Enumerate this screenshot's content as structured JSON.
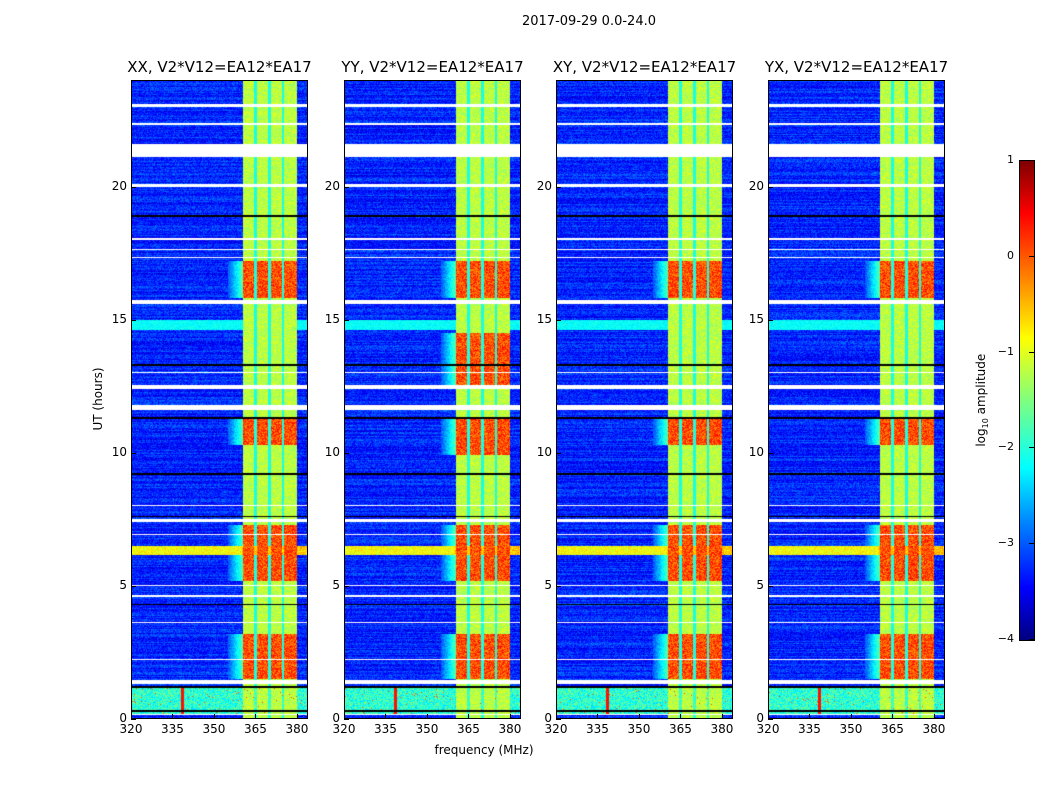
{
  "chart_data": {
    "type": "heatmap",
    "title": "2017-09-29 0.0-24.0",
    "xlabel": "frequency (MHz)",
    "ylabel": "UT (hours)",
    "xlim": [
      320,
      384
    ],
    "ylim": [
      0,
      24
    ],
    "xticks": [
      "320",
      "335",
      "350",
      "365",
      "380"
    ],
    "xtick_values": [
      320,
      335,
      350,
      365,
      380
    ],
    "yticks": [
      "0",
      "5",
      "10",
      "15",
      "20"
    ],
    "ytick_values": [
      0,
      5,
      10,
      15,
      20
    ],
    "colormap": "jet",
    "colorbar": {
      "label_main": "log",
      "label_sub": "10",
      "label_rest": " amplitude",
      "range": [
        -4,
        1
      ],
      "ticks": [
        "1",
        "0",
        "−1",
        "−2",
        "−3",
        "−4"
      ],
      "tick_values": [
        1,
        0,
        -1,
        -2,
        -3,
        -4
      ]
    },
    "panels": [
      {
        "title": "XX, V2*V12=EA12*EA17",
        "hot_hours": [
          [
            15.8,
            17.2
          ],
          [
            5.2,
            7.3
          ],
          [
            1.5,
            3.2
          ],
          [
            10.3,
            11.3
          ]
        ]
      },
      {
        "title": "YY, V2*V12=EA12*EA17",
        "hot_hours": [
          [
            15.8,
            17.2
          ],
          [
            5.2,
            7.3
          ],
          [
            1.5,
            3.2
          ],
          [
            9.9,
            11.3
          ],
          [
            12.5,
            14.5
          ]
        ]
      },
      {
        "title": "XY, V2*V12=EA12*EA17",
        "hot_hours": [
          [
            15.8,
            17.2
          ],
          [
            5.2,
            7.3
          ],
          [
            1.5,
            3.2
          ],
          [
            10.3,
            11.3
          ]
        ]
      },
      {
        "title": "YX, V2*V12=EA12*EA17",
        "hot_hours": [
          [
            15.8,
            17.2
          ],
          [
            5.2,
            7.3
          ],
          [
            1.5,
            3.2
          ],
          [
            10.3,
            11.3
          ]
        ]
      }
    ],
    "features": {
      "background_level": -3.2,
      "band_mhz": [
        360.5,
        380
      ],
      "band_level": -1.2,
      "band_gaps_mhz": [
        365,
        370,
        375
      ],
      "hot_level": 0.0,
      "rfi_hours": [
        [
          6.15,
          6.5
        ]
      ],
      "low_band_hours": [
        0.2,
        1.25
      ],
      "cyan_band_hours": [
        14.6,
        15.0
      ],
      "spike_mhz": 338.5,
      "flagged_white_hours": [
        [
          21.1,
          21.6
        ],
        [
          23.0,
          23.1
        ],
        [
          22.3,
          22.4
        ],
        [
          20.0,
          20.08
        ],
        [
          18.0,
          18.05
        ],
        [
          17.6,
          17.65
        ],
        [
          17.3,
          17.35
        ],
        [
          15.6,
          15.75
        ],
        [
          13.0,
          13.05
        ],
        [
          12.4,
          12.55
        ],
        [
          11.6,
          11.8
        ],
        [
          8.0,
          8.05
        ],
        [
          7.4,
          7.5
        ],
        [
          6.9,
          6.95
        ],
        [
          5.0,
          5.05
        ],
        [
          4.6,
          4.65
        ],
        [
          3.6,
          3.65
        ],
        [
          2.2,
          2.25
        ],
        [
          1.3,
          1.45
        ],
        [
          0.15,
          0.2
        ]
      ],
      "flagged_black_hours": [
        18.9,
        15.7,
        13.3,
        11.3,
        9.2,
        7.6,
        4.3,
        1.2,
        0.3
      ]
    }
  }
}
